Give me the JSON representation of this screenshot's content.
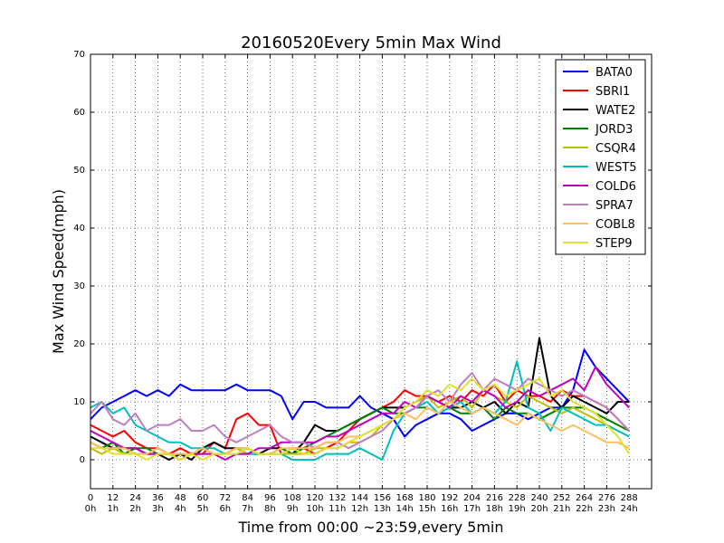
{
  "chart_data": {
    "type": "line",
    "title": "20160520Every 5min Max Wind",
    "xlabel": "Time from 00:00 ~23:59,every 5min",
    "ylabel": "Max Wind Speed(mph)",
    "xlim": [
      0,
      300
    ],
    "ylim": [
      -5,
      70
    ],
    "grid": true,
    "legend_position": "top-right",
    "x_ticks": [
      {
        "value": 0,
        "line1": "0",
        "line2": "0h"
      },
      {
        "value": 12,
        "line1": "12",
        "line2": "1h"
      },
      {
        "value": 24,
        "line1": "24",
        "line2": "2h"
      },
      {
        "value": 36,
        "line1": "36",
        "line2": "3h"
      },
      {
        "value": 48,
        "line1": "48",
        "line2": "4h"
      },
      {
        "value": 60,
        "line1": "60",
        "line2": "5h"
      },
      {
        "value": 72,
        "line1": "72",
        "line2": "6h"
      },
      {
        "value": 84,
        "line1": "84",
        "line2": "7h"
      },
      {
        "value": 96,
        "line1": "96",
        "line2": "8h"
      },
      {
        "value": 108,
        "line1": "108",
        "line2": "9h"
      },
      {
        "value": 120,
        "line1": "120",
        "line2": "10h"
      },
      {
        "value": 132,
        "line1": "132",
        "line2": "11h"
      },
      {
        "value": 144,
        "line1": "144",
        "line2": "12h"
      },
      {
        "value": 156,
        "line1": "156",
        "line2": "13h"
      },
      {
        "value": 168,
        "line1": "168",
        "line2": "14h"
      },
      {
        "value": 180,
        "line1": "180",
        "line2": "15h"
      },
      {
        "value": 192,
        "line1": "192",
        "line2": "16h"
      },
      {
        "value": 204,
        "line1": "204",
        "line2": "17h"
      },
      {
        "value": 216,
        "line1": "216",
        "line2": "18h"
      },
      {
        "value": 228,
        "line1": "228",
        "line2": "19h"
      },
      {
        "value": 240,
        "line1": "240",
        "line2": "20h"
      },
      {
        "value": 252,
        "line1": "252",
        "line2": "21h"
      },
      {
        "value": 264,
        "line1": "264",
        "line2": "22h"
      },
      {
        "value": 276,
        "line1": "276",
        "line2": "23h"
      },
      {
        "value": 288,
        "line1": "288",
        "line2": "24h"
      }
    ],
    "y_ticks": [
      0,
      10,
      20,
      30,
      40,
      50,
      60,
      70
    ],
    "x": [
      0,
      6,
      12,
      18,
      24,
      30,
      36,
      42,
      48,
      54,
      60,
      66,
      72,
      78,
      84,
      90,
      96,
      102,
      108,
      114,
      120,
      126,
      132,
      138,
      144,
      150,
      156,
      162,
      168,
      174,
      180,
      186,
      192,
      198,
      204,
      210,
      216,
      222,
      228,
      234,
      240,
      246,
      252,
      258,
      264,
      270,
      276,
      282,
      288
    ],
    "series": [
      {
        "name": "BATA0",
        "color": "#0000ff",
        "values": [
          7,
          9,
          10,
          11,
          12,
          11,
          12,
          11,
          13,
          12,
          12,
          12,
          12,
          13,
          12,
          12,
          12,
          11,
          7,
          10,
          10,
          9,
          9,
          9,
          11,
          9,
          8,
          7,
          4,
          6,
          7,
          8,
          8,
          7,
          5,
          6,
          7,
          8,
          8,
          7,
          8,
          9,
          9,
          12,
          19,
          16,
          14,
          12,
          10
        ]
      },
      {
        "name": "SBRI1",
        "color": "#ff0000",
        "values": [
          6,
          5,
          4,
          5,
          3,
          2,
          2,
          1,
          2,
          1,
          1,
          3,
          2,
          7,
          8,
          6,
          6,
          1,
          2,
          2,
          1,
          2,
          3,
          5,
          7,
          8,
          9,
          10,
          12,
          11,
          11,
          10,
          11,
          10,
          12,
          11,
          13,
          10,
          12,
          11,
          11,
          10,
          12,
          11,
          11,
          10,
          9,
          7,
          5
        ]
      },
      {
        "name": "WATE2",
        "color": "#000000",
        "values": [
          4,
          3,
          2,
          2,
          2,
          1,
          1,
          0,
          1,
          0,
          2,
          3,
          2,
          2,
          1,
          1,
          2,
          2,
          1,
          3,
          6,
          5,
          5,
          6,
          7,
          8,
          9,
          9,
          9,
          10,
          11,
          10,
          9,
          9,
          10,
          9,
          10,
          8,
          10,
          9,
          21,
          11,
          9,
          11,
          10,
          9,
          8,
          10,
          10
        ]
      },
      {
        "name": "JORD3",
        "color": "#008000",
        "values": [
          3,
          2,
          3,
          1,
          2,
          2,
          1,
          1,
          1,
          1,
          2,
          1,
          1,
          2,
          2,
          1,
          1,
          2,
          1,
          2,
          3,
          4,
          5,
          6,
          7,
          8,
          9,
          8,
          8,
          9,
          9,
          8,
          9,
          8,
          8,
          9,
          7,
          9,
          8,
          8,
          7,
          8,
          9,
          9,
          9,
          8,
          7,
          6,
          5
        ]
      },
      {
        "name": "CSQR4",
        "color": "#bfbf00",
        "values": [
          2,
          1,
          2,
          1,
          1,
          1,
          1,
          1,
          0,
          1,
          1,
          1,
          1,
          2,
          1,
          1,
          1,
          1,
          1,
          1,
          2,
          2,
          2,
          3,
          3,
          4,
          6,
          7,
          9,
          10,
          11,
          9,
          10,
          11,
          9,
          12,
          11,
          10,
          9,
          11,
          10,
          9,
          8,
          9,
          8,
          7,
          6,
          5,
          4
        ]
      },
      {
        "name": "WEST5",
        "color": "#00bfbf",
        "values": [
          9,
          10,
          8,
          9,
          6,
          5,
          4,
          3,
          3,
          2,
          2,
          2,
          1,
          1,
          1,
          1,
          1,
          1,
          0,
          0,
          0,
          1,
          1,
          1,
          2,
          1,
          0,
          5,
          8,
          9,
          10,
          8,
          9,
          10,
          8,
          9,
          8,
          10,
          17,
          9,
          8,
          5,
          9,
          8,
          7,
          6,
          6,
          5,
          4
        ]
      },
      {
        "name": "COLD6",
        "color": "#bf00bf",
        "values": [
          5,
          4,
          3,
          2,
          2,
          1,
          1,
          1,
          0,
          1,
          1,
          1,
          0,
          1,
          1,
          2,
          2,
          3,
          3,
          3,
          3,
          4,
          4,
          5,
          6,
          7,
          8,
          8,
          10,
          9,
          11,
          10,
          9,
          11,
          10,
          12,
          11,
          9,
          10,
          12,
          11,
          12,
          13,
          14,
          12,
          16,
          13,
          11,
          9
        ]
      },
      {
        "name": "SPRA7",
        "color": "#bf7fbf",
        "values": [
          8,
          10,
          7,
          6,
          8,
          5,
          6,
          6,
          7,
          5,
          5,
          6,
          4,
          3,
          4,
          5,
          6,
          4,
          3,
          3,
          2,
          3,
          3,
          2,
          3,
          4,
          5,
          7,
          8,
          9,
          11,
          12,
          10,
          13,
          15,
          12,
          14,
          13,
          12,
          14,
          13,
          12,
          11,
          12,
          11,
          10,
          9,
          7,
          5
        ]
      },
      {
        "name": "COBL8",
        "color": "#ffbf60",
        "values": [
          3,
          2,
          2,
          2,
          1,
          1,
          2,
          1,
          1,
          1,
          2,
          1,
          1,
          2,
          2,
          1,
          1,
          2,
          2,
          2,
          2,
          3,
          3,
          4,
          4,
          5,
          6,
          7,
          8,
          7,
          9,
          8,
          10,
          9,
          8,
          9,
          8,
          7,
          6,
          8,
          7,
          6,
          5,
          6,
          5,
          4,
          3,
          3,
          2
        ]
      },
      {
        "name": "STEP9",
        "color": "#e0e030",
        "values": [
          2,
          2,
          1,
          1,
          1,
          0,
          1,
          1,
          0,
          1,
          0,
          1,
          1,
          1,
          2,
          1,
          1,
          1,
          2,
          1,
          1,
          2,
          2,
          3,
          4,
          5,
          6,
          7,
          9,
          10,
          12,
          11,
          13,
          12,
          14,
          12,
          13,
          11,
          12,
          13,
          14,
          11,
          12,
          10,
          9,
          8,
          6,
          4,
          1
        ]
      }
    ]
  }
}
